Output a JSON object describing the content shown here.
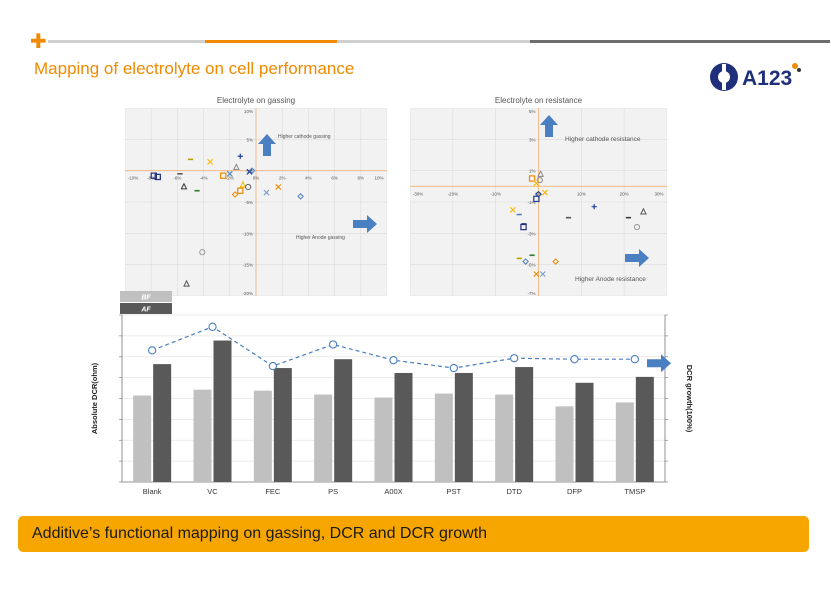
{
  "slide": {
    "title": "Mapping of electrolyte on cell performance",
    "logo_text": "A123",
    "banner": "Additive’s functional mapping on gassing, DCR and DCR growth",
    "accent": "#f08a00",
    "banner_color": "#f7a600"
  },
  "chart_data": [
    {
      "type": "scatter",
      "title": "Electrolyte on gassing",
      "xlim": [
        -10,
        10
      ],
      "ylim": [
        -20,
        10
      ],
      "x_ticks": [
        "-10%",
        "-8%",
        "-6%",
        "-4%",
        "-2%",
        "0%",
        "2%",
        "4%",
        "6%",
        "8%",
        "10%"
      ],
      "y_ticks": [
        "10%",
        "5%",
        "0%",
        "-5%",
        "-10%",
        "-15%",
        "-20%"
      ],
      "annotations": [
        "Higher cathode gassing",
        "Higher Anode gassing"
      ],
      "grid": true,
      "points": [
        {
          "x": -7.5,
          "y": -1.0,
          "marker": "square",
          "color": "#1f2f7a"
        },
        {
          "x": -7.8,
          "y": -0.8,
          "marker": "square",
          "color": "#1f2f7a"
        },
        {
          "x": -5.8,
          "y": -0.5,
          "marker": "minus",
          "color": "#555555"
        },
        {
          "x": -5.5,
          "y": -2.5,
          "marker": "triangle",
          "color": "#3a3a3a"
        },
        {
          "x": -5.0,
          "y": 1.8,
          "marker": "minus",
          "color": "#b8a000"
        },
        {
          "x": -3.5,
          "y": 1.4,
          "marker": "x",
          "color": "#f5b800"
        },
        {
          "x": -4.5,
          "y": -3.2,
          "marker": "minus",
          "color": "#2e7d32"
        },
        {
          "x": -2.5,
          "y": -0.8,
          "marker": "square",
          "color": "#f08a00"
        },
        {
          "x": -2.0,
          "y": -0.5,
          "marker": "x",
          "color": "#4a7fc1"
        },
        {
          "x": -1.5,
          "y": 0.6,
          "marker": "triangle",
          "color": "#888888"
        },
        {
          "x": -1.2,
          "y": 2.3,
          "marker": "plus",
          "color": "#1f3f9a"
        },
        {
          "x": -0.5,
          "y": -0.2,
          "marker": "x",
          "color": "#1f3f9a"
        },
        {
          "x": -0.3,
          "y": 0.0,
          "marker": "diamond",
          "color": "#4a7fc1"
        },
        {
          "x": -1.0,
          "y": -2.2,
          "marker": "triangle",
          "color": "#f5b800"
        },
        {
          "x": -0.6,
          "y": -2.6,
          "marker": "circle",
          "color": "#666666"
        },
        {
          "x": -1.2,
          "y": -3.2,
          "marker": "square",
          "color": "#f08a00"
        },
        {
          "x": -1.6,
          "y": -3.8,
          "marker": "diamond",
          "color": "#f08a00"
        },
        {
          "x": 0.8,
          "y": -3.5,
          "marker": "x",
          "color": "#7a9cc9"
        },
        {
          "x": 1.7,
          "y": -2.6,
          "marker": "x",
          "color": "#f08a00"
        },
        {
          "x": 3.4,
          "y": -4.1,
          "marker": "diamond",
          "color": "#4a7fc1"
        },
        {
          "x": -4.1,
          "y": -13.0,
          "marker": "circle",
          "color": "#999999"
        },
        {
          "x": -5.3,
          "y": -18.0,
          "marker": "triangle",
          "color": "#555555"
        }
      ]
    },
    {
      "type": "scatter",
      "title": "Electrolyte on resistance",
      "xlim": [
        -30,
        30
      ],
      "ylim": [
        -7,
        5
      ],
      "x_ticks": [
        "-30%",
        "-20%",
        "-10%",
        "0%",
        "10%",
        "20%",
        "30%"
      ],
      "y_ticks": [
        "5%",
        "3%",
        "1%",
        "-1%",
        "-3%",
        "-5%",
        "-7%"
      ],
      "annotations": [
        "Higher cathode resistance",
        "Higher Anode resistance"
      ],
      "grid": true,
      "points": [
        {
          "x": -1.5,
          "y": 0.5,
          "marker": "square",
          "color": "#f08a00"
        },
        {
          "x": 0.5,
          "y": 0.8,
          "marker": "triangle",
          "color": "#888888"
        },
        {
          "x": 0.3,
          "y": 0.4,
          "marker": "circle",
          "color": "#888888"
        },
        {
          "x": -0.5,
          "y": 0.2,
          "marker": "x",
          "color": "#f5b800"
        },
        {
          "x": 0.0,
          "y": -0.5,
          "marker": "diamond",
          "color": "#1f3f9a"
        },
        {
          "x": 1.5,
          "y": -0.4,
          "marker": "x",
          "color": "#f5b800"
        },
        {
          "x": -0.5,
          "y": -0.8,
          "marker": "square",
          "color": "#1f3f9a"
        },
        {
          "x": -6.0,
          "y": -1.5,
          "marker": "x",
          "color": "#f5b800"
        },
        {
          "x": -4.5,
          "y": -1.8,
          "marker": "minus",
          "color": "#4a7fc1"
        },
        {
          "x": -3.5,
          "y": -2.6,
          "marker": "square",
          "color": "#1f2f7a"
        },
        {
          "x": -3.4,
          "y": -2.4,
          "marker": "minus",
          "color": "#1f2f7a"
        },
        {
          "x": 7.0,
          "y": -2.0,
          "marker": "minus",
          "color": "#555555"
        },
        {
          "x": 13.0,
          "y": -1.3,
          "marker": "plus",
          "color": "#1f3f9a"
        },
        {
          "x": 21.0,
          "y": -2.0,
          "marker": "minus",
          "color": "#3a3a3a"
        },
        {
          "x": 24.5,
          "y": -1.6,
          "marker": "triangle",
          "color": "#555555"
        },
        {
          "x": 23.0,
          "y": -2.6,
          "marker": "circle",
          "color": "#999999"
        },
        {
          "x": -4.5,
          "y": -4.6,
          "marker": "minus",
          "color": "#b8a000"
        },
        {
          "x": -3.0,
          "y": -4.8,
          "marker": "diamond",
          "color": "#4a7fc1"
        },
        {
          "x": -1.5,
          "y": -4.4,
          "marker": "minus",
          "color": "#2e7d32"
        },
        {
          "x": 4.0,
          "y": -4.8,
          "marker": "diamond",
          "color": "#f08a00"
        },
        {
          "x": -0.5,
          "y": -5.6,
          "marker": "x",
          "color": "#f08a00"
        },
        {
          "x": 1.0,
          "y": -5.6,
          "marker": "x",
          "color": "#7a9cc9"
        }
      ]
    },
    {
      "type": "bar",
      "categories": [
        "Blank",
        "VC",
        "FEC",
        "PS",
        "A00X",
        "PST",
        "DTD",
        "DFP",
        "TMSP"
      ],
      "series": [
        {
          "name": "BF",
          "values": [
            4.4,
            4.7,
            4.65,
            4.45,
            4.3,
            4.5,
            4.45,
            3.85,
            4.05
          ],
          "color": "#c0c0c0"
        },
        {
          "name": "AF",
          "values": [
            6.0,
            7.2,
            5.8,
            6.25,
            5.55,
            5.55,
            5.85,
            5.05,
            5.35
          ],
          "color": "#595959"
        }
      ],
      "line": {
        "values": [
          6.7,
          7.9,
          5.9,
          7.0,
          6.2,
          5.8,
          6.3,
          6.25,
          6.25
        ],
        "color": "#4a7fc1"
      },
      "ylabel": "Absolute DCR(ohm)",
      "y2label": "DCR growth(100%)",
      "ylim": [
        0,
        8.5
      ],
      "grid": true,
      "legend": "top-left"
    }
  ]
}
